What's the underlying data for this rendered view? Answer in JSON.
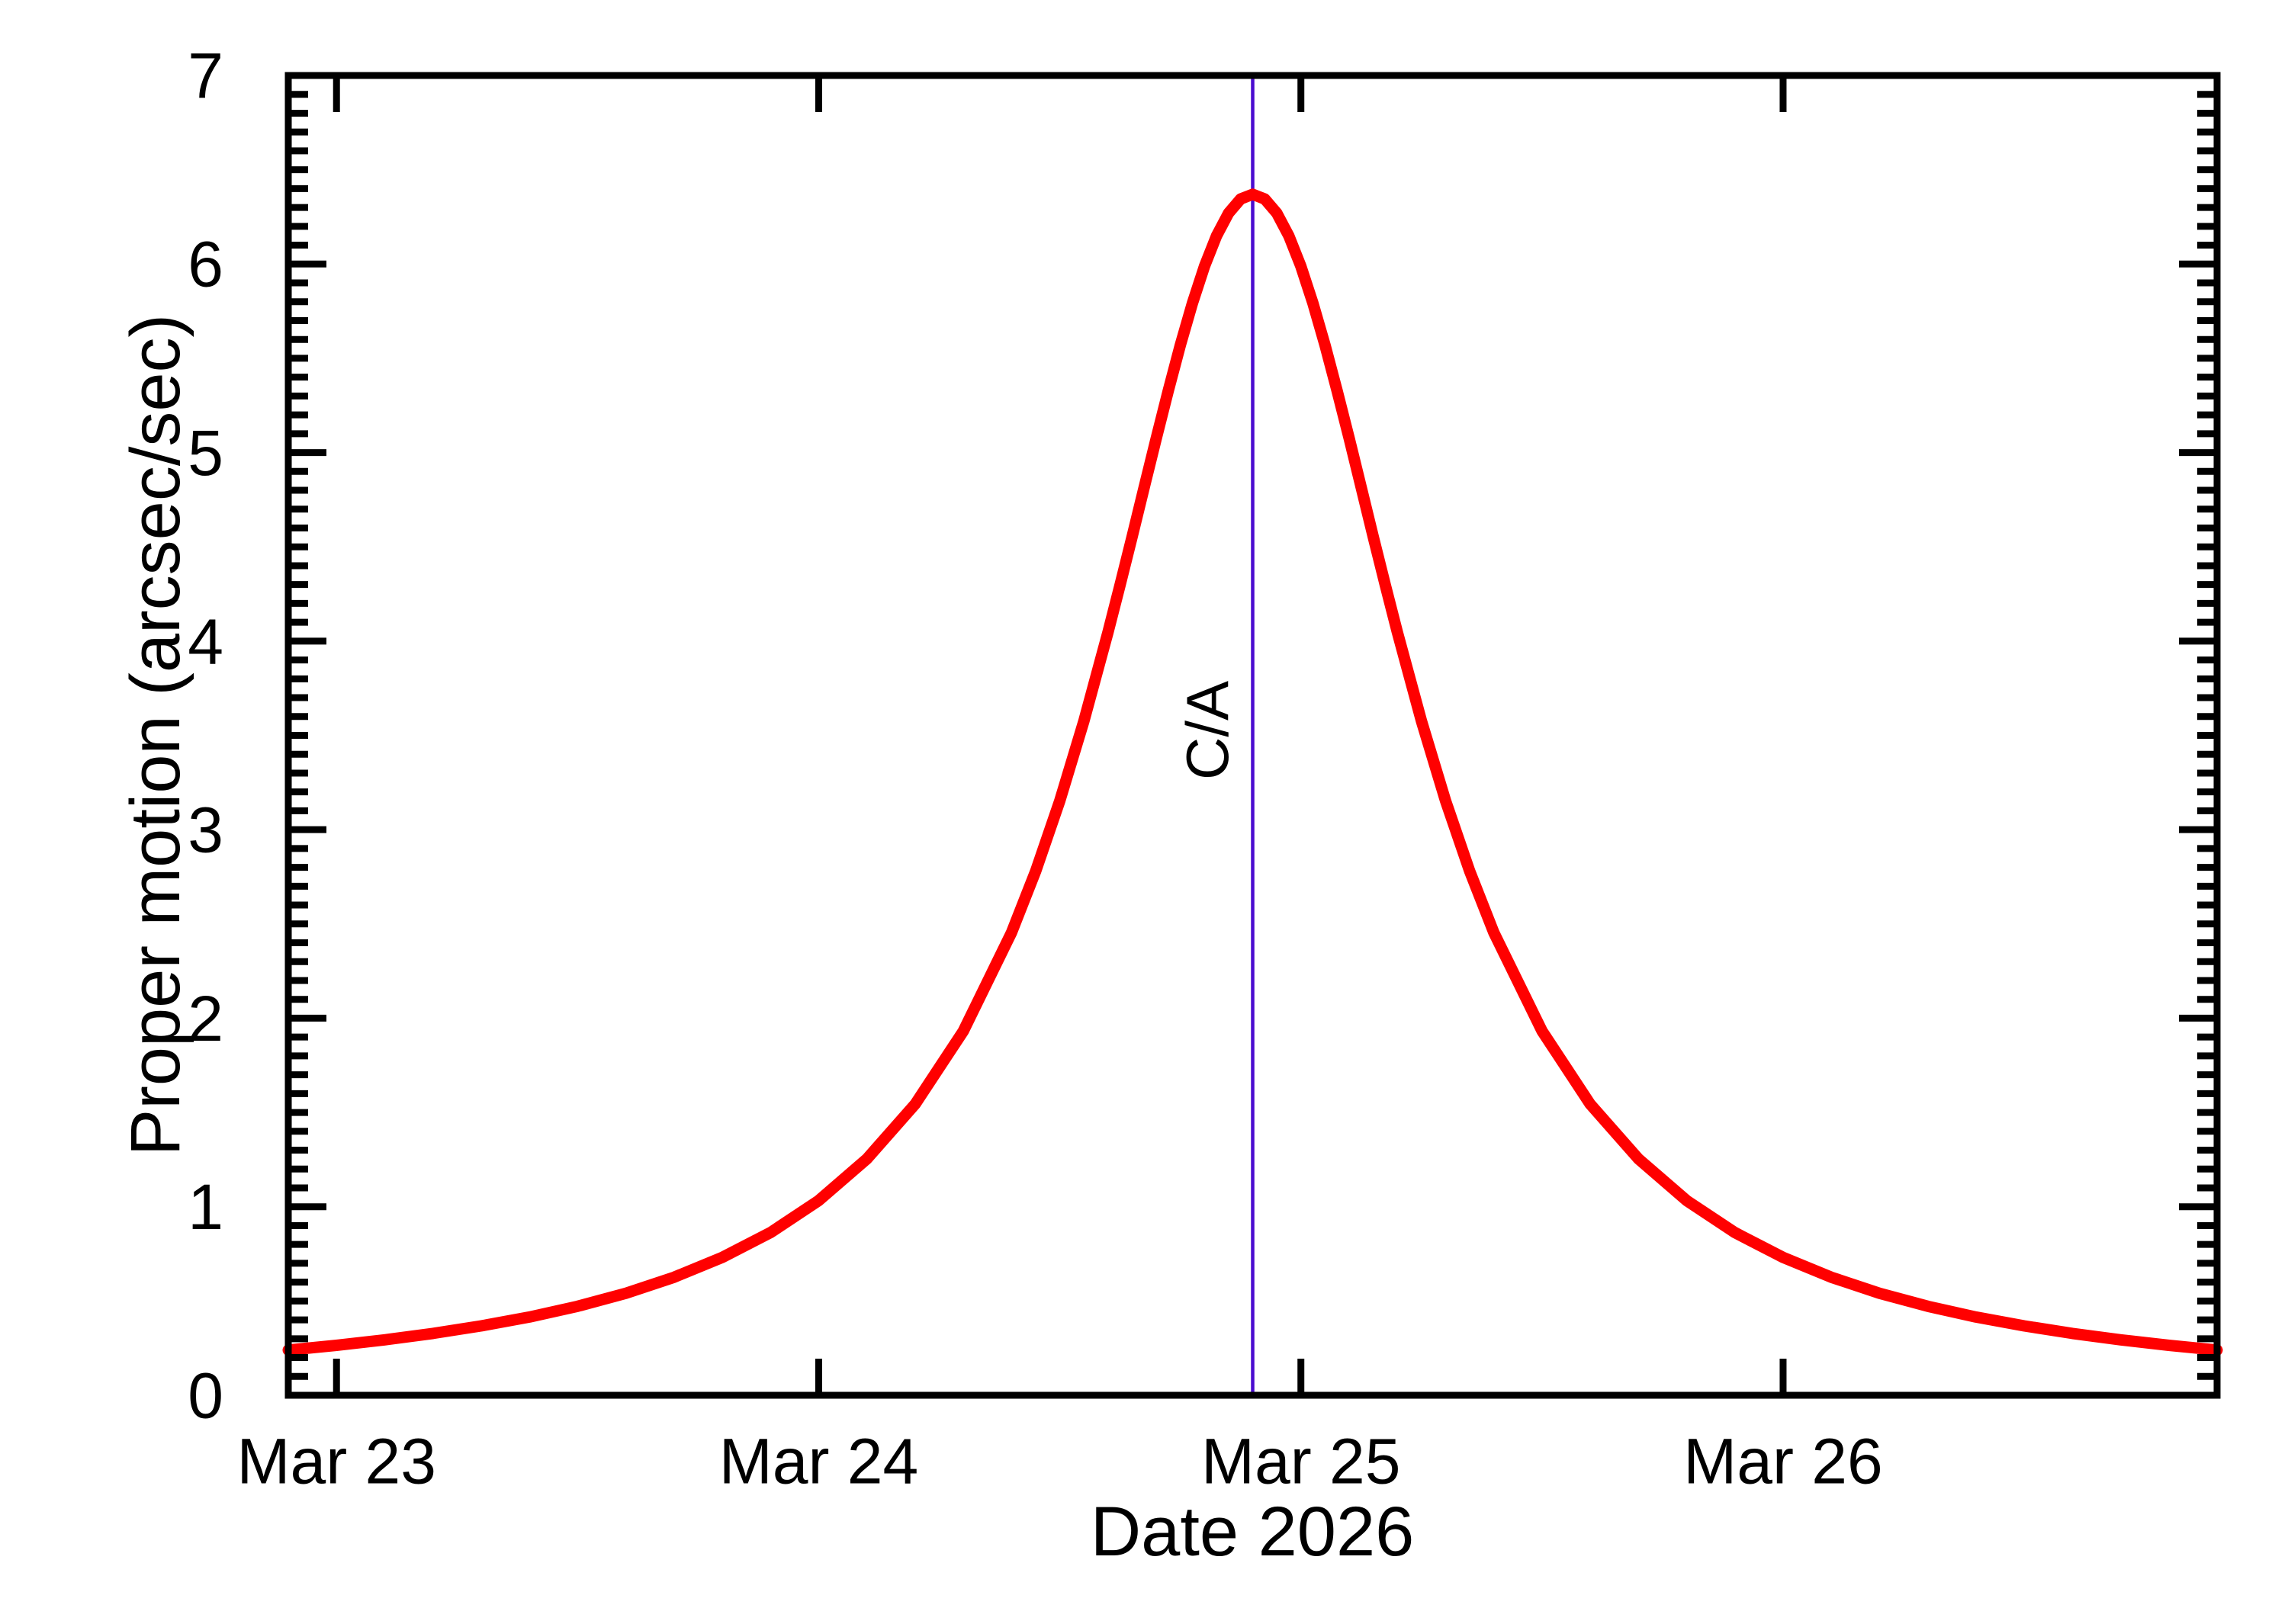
{
  "figure": {
    "background": "#ffffff",
    "axis_color": "#000000"
  },
  "chart_data": {
    "type": "line",
    "title": "",
    "xlabel": "Date 2026",
    "ylabel": "Proper motion (arcsec/sec)",
    "xlim_march_day": [
      22.9,
      26.9
    ],
    "ylim": [
      0,
      7
    ],
    "grid": false,
    "legend": null,
    "x_major_ticks": [
      {
        "march_day": 23,
        "label": "Mar 23"
      },
      {
        "march_day": 24,
        "label": "Mar 24"
      },
      {
        "march_day": 25,
        "label": "Mar 25"
      },
      {
        "march_day": 26,
        "label": "Mar 26"
      }
    ],
    "y_major_ticks": [
      {
        "value": 0,
        "label": "0"
      },
      {
        "value": 1,
        "label": "1"
      },
      {
        "value": 2,
        "label": "2"
      },
      {
        "value": 3,
        "label": "3"
      },
      {
        "value": 4,
        "label": "4"
      },
      {
        "value": 5,
        "label": "5"
      },
      {
        "value": 6,
        "label": "6"
      },
      {
        "value": 7,
        "label": "7"
      }
    ],
    "y_minor_tick_step": 0.1,
    "series": [
      {
        "name": "proper motion",
        "color": "#ff0000",
        "line_width": 15,
        "x": [
          22.9,
          23.0,
          23.1,
          23.2,
          23.3,
          23.4,
          23.5,
          23.6,
          23.7,
          23.8,
          23.9,
          24.0,
          24.1,
          24.2,
          24.3,
          24.4,
          24.45,
          24.5,
          24.55,
          24.6,
          24.625,
          24.65,
          24.675,
          24.7,
          24.725,
          24.75,
          24.775,
          24.8,
          24.825,
          24.85,
          24.875,
          24.9,
          24.925,
          24.95,
          24.975,
          25.0,
          25.025,
          25.05,
          25.075,
          25.1,
          25.125,
          25.15,
          25.175,
          25.2,
          25.25,
          25.3,
          25.35,
          25.4,
          25.5,
          25.6,
          25.7,
          25.8,
          25.9,
          26.0,
          26.1,
          26.2,
          26.3,
          26.4,
          26.5,
          26.6,
          26.7,
          26.8,
          26.9
        ],
        "y": [
          0.24,
          0.265,
          0.294,
          0.328,
          0.368,
          0.415,
          0.472,
          0.541,
          0.626,
          0.731,
          0.863,
          1.033,
          1.254,
          1.544,
          1.932,
          2.455,
          2.78,
          3.153,
          3.576,
          4.047,
          4.297,
          4.553,
          4.815,
          5.076,
          5.329,
          5.571,
          5.792,
          5.988,
          6.149,
          6.27,
          6.345,
          6.37,
          6.345,
          6.27,
          6.149,
          5.988,
          5.792,
          5.571,
          5.329,
          5.076,
          4.815,
          4.553,
          4.297,
          4.047,
          3.576,
          3.153,
          2.78,
          2.455,
          1.932,
          1.544,
          1.254,
          1.033,
          0.863,
          0.731,
          0.626,
          0.541,
          0.472,
          0.415,
          0.368,
          0.328,
          0.294,
          0.265,
          0.24
        ]
      }
    ],
    "peak": {
      "march_day": 24.9,
      "value_arcsec_per_sec": 6.37
    },
    "annotations": {
      "closest_approach": {
        "label": "C/A",
        "march_day": 24.9,
        "color": "#4a0cd0",
        "line_full_height": true
      }
    }
  }
}
